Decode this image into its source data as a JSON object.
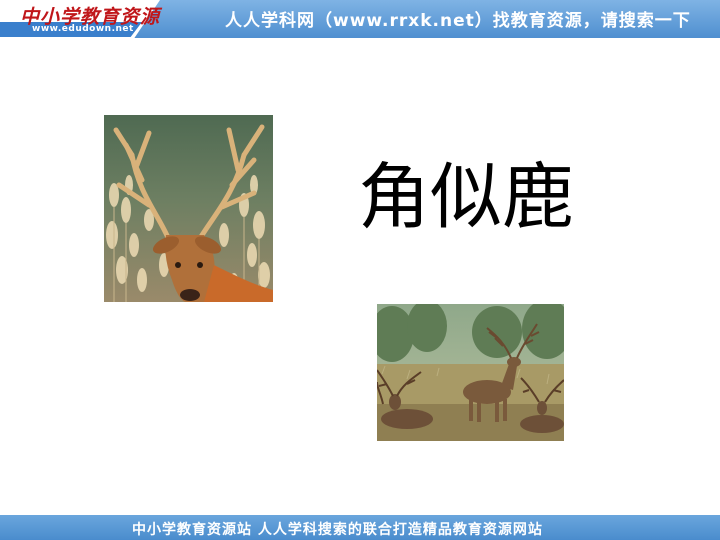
{
  "header": {
    "logo_text": "中小学教育资源",
    "logo_url": "www.edudown.net",
    "tagline": "人人学科网（www.rrxk.net）找教育资源，请搜索一下"
  },
  "slide": {
    "title": "角似鹿",
    "images": [
      {
        "name": "deer-head-photo"
      },
      {
        "name": "deer-herd-photo"
      }
    ]
  },
  "footer": {
    "text": "中小学教育资源站 人人学科搜索的联合打造精品教育资源网站"
  },
  "colors": {
    "banner": "#5b9bd5",
    "logo_red": "#c0161a",
    "text": "#000000"
  }
}
